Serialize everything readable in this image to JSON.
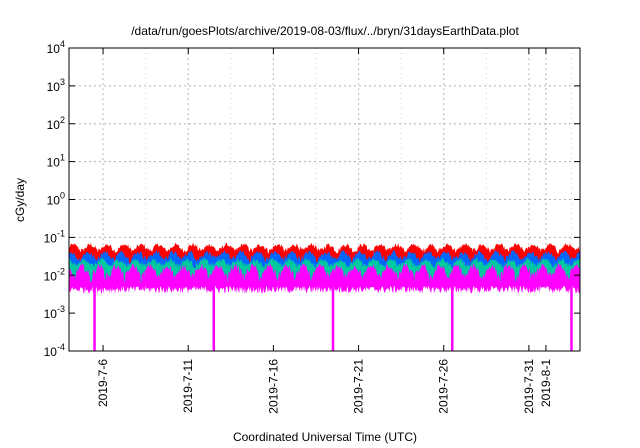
{
  "chart_data": {
    "type": "area",
    "title": "/data/run/goesPlots/archive/2019-08-03/flux/../bryn/31daysEarthData.plot",
    "xlabel": "Coordinated Universal Time (UTC)",
    "ylabel": "cGy/day",
    "y_scale": "log",
    "ylim": [
      0.0001,
      10000
    ],
    "y_ticks": [
      {
        "value": 0.0001,
        "base": "10",
        "exp": "-4"
      },
      {
        "value": 0.001,
        "base": "10",
        "exp": "-3"
      },
      {
        "value": 0.01,
        "base": "10",
        "exp": "-2"
      },
      {
        "value": 0.1,
        "base": "10",
        "exp": "-1"
      },
      {
        "value": 1,
        "base": "10",
        "exp": "0"
      },
      {
        "value": 10,
        "base": "10",
        "exp": "1"
      },
      {
        "value": 100,
        "base": "10",
        "exp": "2"
      },
      {
        "value": 1000,
        "base": "10",
        "exp": "3"
      },
      {
        "value": 10000,
        "base": "10",
        "exp": "4"
      }
    ],
    "xlim": [
      "2019-07-04",
      "2019-08-03"
    ],
    "x_ticks": [
      "2019-7-6",
      "2019-7-11",
      "2019-7-16",
      "2019-7-21",
      "2019-7-26",
      "2019-7-31",
      "2019-8-1"
    ],
    "grid": true,
    "legend": "none",
    "series": [
      {
        "color": "#ff0000",
        "typical_peak": 0.07,
        "typical_low": 0.035
      },
      {
        "color": "#0066ff",
        "typical_peak": 0.045,
        "typical_low": 0.02
      },
      {
        "color": "#00c8a0",
        "typical_peak": 0.028,
        "typical_low": 0.014
      },
      {
        "color": "#ff00ff",
        "typical_peak": 0.02,
        "typical_low": 0.005,
        "dropouts": [
          "2019-07-05",
          "2019-07-12",
          "2019-07-19",
          "2019-07-26",
          "2019-08-02"
        ],
        "dropout_value": 0.0001
      }
    ]
  }
}
